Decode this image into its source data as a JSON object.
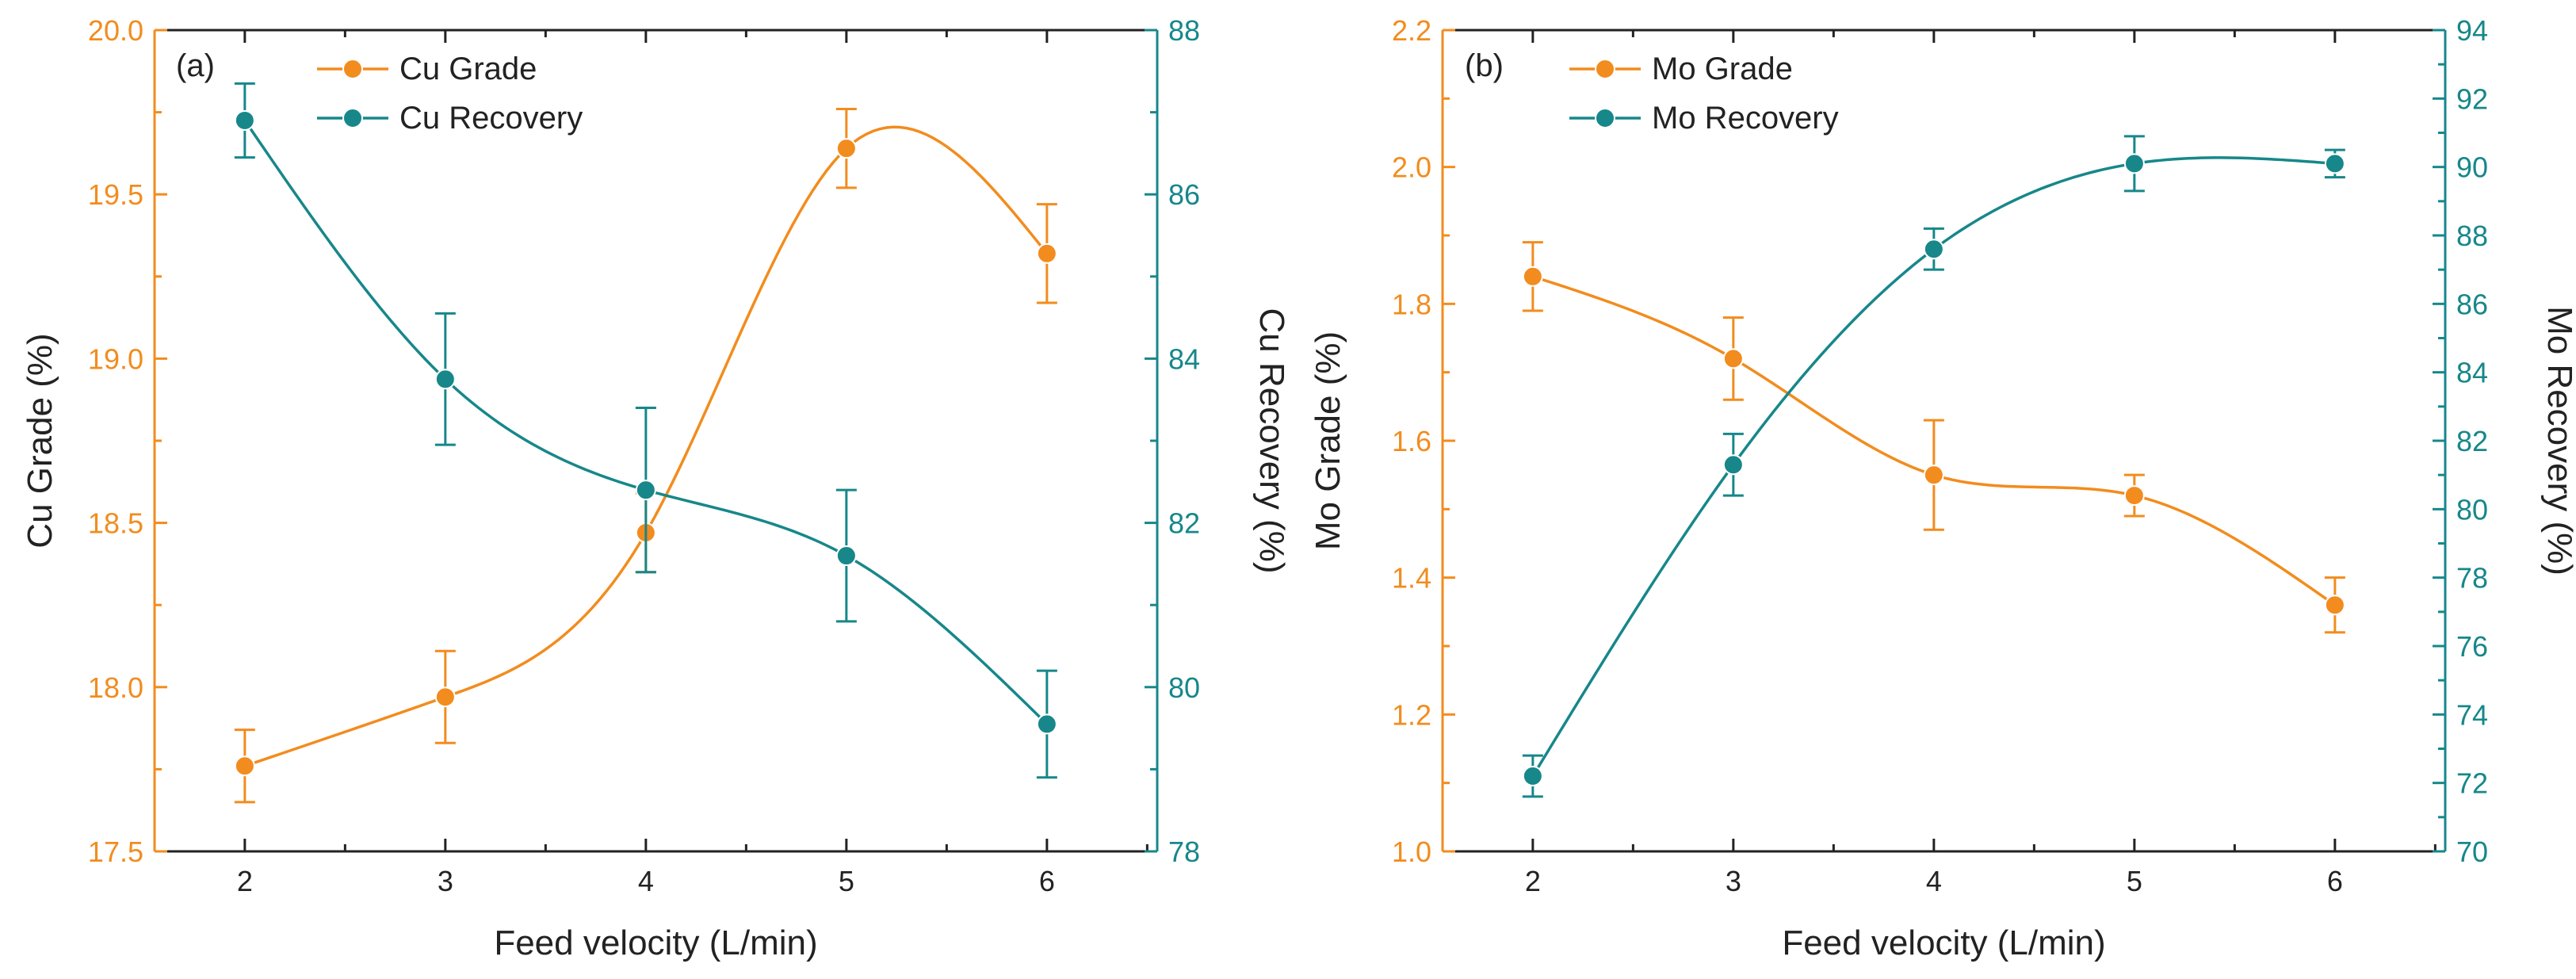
{
  "colors": {
    "grade": "#f28c1e",
    "recovery": "#17878a",
    "axis": "#222222"
  },
  "chart_data": [
    {
      "type": "line",
      "panel_label": "(a)",
      "xlabel": "Feed velocity (L/min)",
      "x": [
        2,
        3,
        4,
        5,
        6
      ],
      "xlim": [
        1.55,
        6.55
      ],
      "x_ticks": [
        "2",
        "3",
        "4",
        "5",
        "6"
      ],
      "ylabel_left": "Cu  Grade (%)",
      "ylim_left": [
        17.5,
        20.0
      ],
      "y_ticks_left": [
        "17.5",
        "18.0",
        "18.5",
        "19.0",
        "19.5",
        "20.0"
      ],
      "y_tick_values_left": [
        17.5,
        18.0,
        18.5,
        19.0,
        19.5,
        20.0
      ],
      "ylabel_right": "Cu  Recovery (%)",
      "ylim_right": [
        78,
        88
      ],
      "y_ticks_right": [
        "78",
        "80",
        "82",
        "84",
        "86",
        "88"
      ],
      "y_tick_values_right": [
        78,
        80,
        82,
        84,
        86,
        88
      ],
      "legend_position": "top-center",
      "series": [
        {
          "name": "Cu  Grade",
          "axis": "left",
          "color_key": "grade",
          "values": [
            17.76,
            17.97,
            18.47,
            19.64,
            19.32
          ],
          "errors": [
            0.11,
            0.14,
            0.12,
            0.12,
            0.15
          ]
        },
        {
          "name": "Cu  Recovery",
          "axis": "right",
          "color_key": "recovery",
          "values": [
            86.9,
            83.75,
            82.4,
            81.6,
            79.55
          ],
          "errors": [
            0.45,
            0.8,
            1.0,
            0.8,
            0.65
          ]
        }
      ]
    },
    {
      "type": "line",
      "panel_label": "(b)",
      "xlabel": "Feed velocity (L/min)",
      "x": [
        2,
        3,
        4,
        5,
        6
      ],
      "xlim": [
        1.55,
        6.55
      ],
      "x_ticks": [
        "2",
        "3",
        "4",
        "5",
        "6"
      ],
      "ylabel_left": "Mo  Grade (%)",
      "ylim_left": [
        1.0,
        2.2
      ],
      "y_ticks_left": [
        "1.0",
        "1.2",
        "1.4",
        "1.6",
        "1.8",
        "2.0",
        "2.2"
      ],
      "y_tick_values_left": [
        1.0,
        1.2,
        1.4,
        1.6,
        1.8,
        2.0,
        2.2
      ],
      "ylabel_right": "Mo  Recovery (%)",
      "ylim_right": [
        70,
        94
      ],
      "y_ticks_right": [
        "70",
        "72",
        "74",
        "76",
        "78",
        "80",
        "82",
        "84",
        "86",
        "88",
        "90",
        "92",
        "94"
      ],
      "y_tick_values_right": [
        70,
        72,
        74,
        76,
        78,
        80,
        82,
        84,
        86,
        88,
        90,
        92,
        94
      ],
      "legend_position": "top-center",
      "series": [
        {
          "name": "Mo  Grade",
          "axis": "left",
          "color_key": "grade",
          "values": [
            1.84,
            1.72,
            1.55,
            1.52,
            1.36
          ],
          "errors": [
            0.05,
            0.06,
            0.08,
            0.03,
            0.04
          ]
        },
        {
          "name": "Mo  Recovery",
          "axis": "right",
          "color_key": "recovery",
          "values": [
            72.2,
            81.3,
            87.6,
            90.1,
            90.1
          ],
          "errors": [
            0.6,
            0.9,
            0.6,
            0.8,
            0.4
          ]
        }
      ]
    }
  ]
}
